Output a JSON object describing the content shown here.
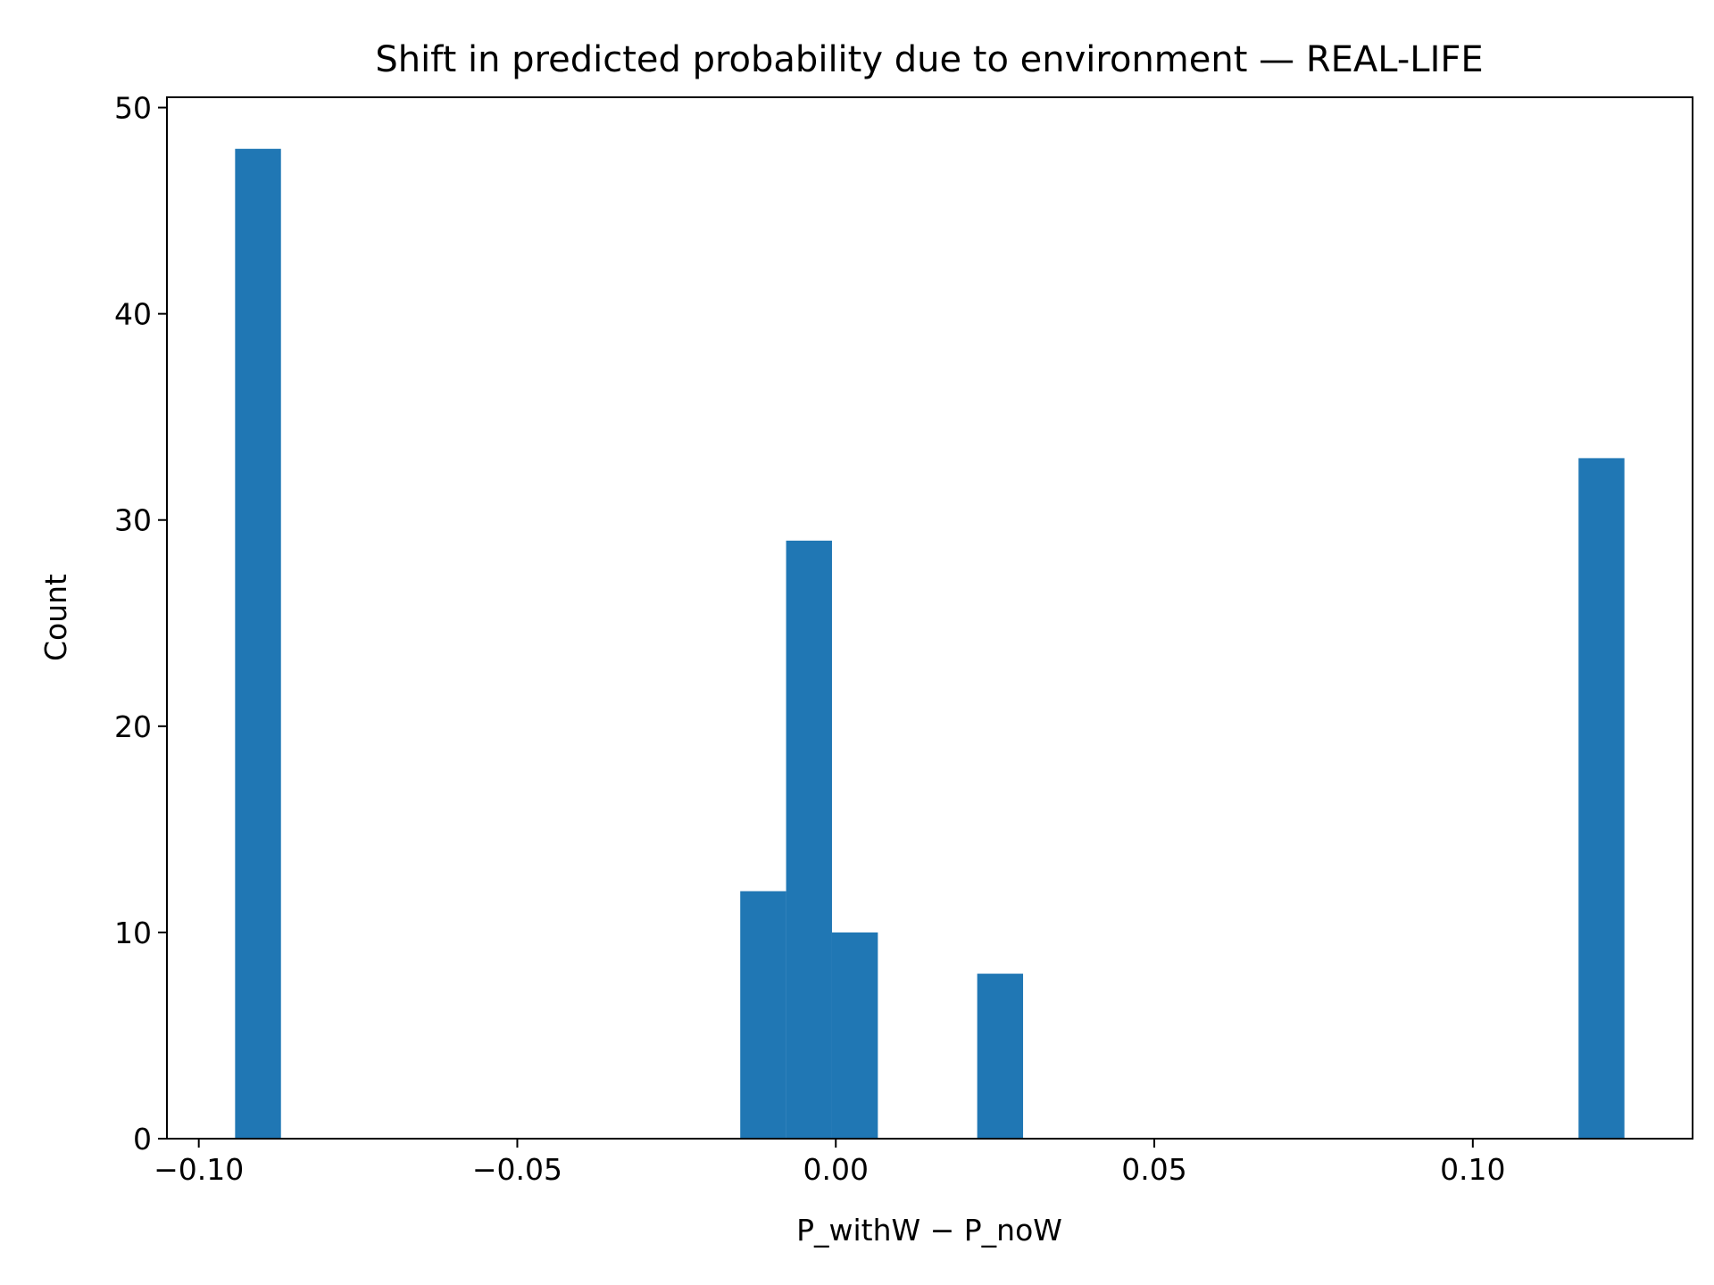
{
  "chart_data": {
    "type": "bar",
    "title": "Shift in predicted probability due to environment — REAL-LIFE",
    "xlabel": "P_withW − P_noW",
    "ylabel": "Count",
    "xlim": [
      -0.105,
      0.1345
    ],
    "ylim": [
      0,
      50.5
    ],
    "grid": false,
    "x_ticks": [
      {
        "value": -0.1,
        "label": "−0.10"
      },
      {
        "value": -0.05,
        "label": "−0.05"
      },
      {
        "value": 0.0,
        "label": "0.00"
      },
      {
        "value": 0.05,
        "label": "0.05"
      },
      {
        "value": 0.1,
        "label": "0.10"
      }
    ],
    "y_ticks": [
      {
        "value": 0,
        "label": "0"
      },
      {
        "value": 10,
        "label": "10"
      },
      {
        "value": 20,
        "label": "20"
      },
      {
        "value": 30,
        "label": "30"
      },
      {
        "value": 40,
        "label": "40"
      },
      {
        "value": 50,
        "label": "50"
      }
    ],
    "bins": [
      {
        "start": -0.0943,
        "end": -0.0871,
        "count": 48
      },
      {
        "start": -0.015,
        "end": -0.0078,
        "count": 12
      },
      {
        "start": -0.0078,
        "end": -0.0006,
        "count": 29
      },
      {
        "start": -0.0006,
        "end": 0.0066,
        "count": 10
      },
      {
        "start": 0.0222,
        "end": 0.0294,
        "count": 8
      },
      {
        "start": 0.1166,
        "end": 0.1238,
        "count": 33
      }
    ],
    "bar_color": "#2077b4"
  }
}
